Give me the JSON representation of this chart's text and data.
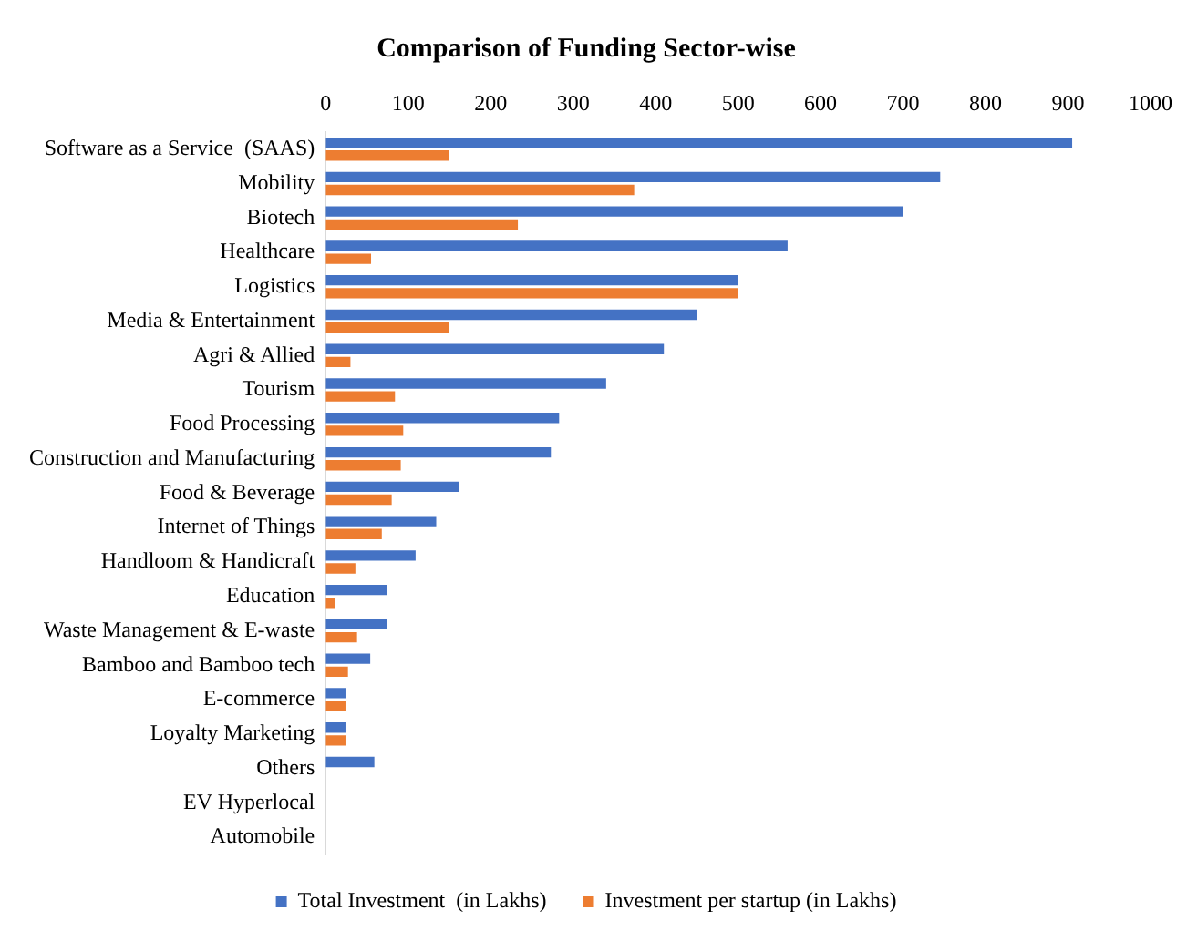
{
  "chart_data": {
    "type": "bar",
    "orientation": "horizontal",
    "title": "Comparison of Funding Sector-wise",
    "categories": [
      "Software as a Service  (SAAS)",
      "Mobility",
      "Biotech",
      "Healthcare",
      "Logistics",
      "Media & Entertainment",
      "Agri & Allied",
      "Tourism",
      "Food Processing",
      "Construction and Manufacturing",
      "Food & Beverage",
      "Internet of Things",
      "Handloom & Handicraft",
      "Education",
      "Waste Management & E-waste",
      "Bamboo and Bamboo tech",
      "E-commerce",
      "Loyalty Marketing",
      "Others",
      "EV Hyperlocal",
      "Automobile"
    ],
    "series": [
      {
        "name": "Total Investment  (in Lakhs)",
        "color": "#4472c4",
        "values": [
          905,
          745,
          700,
          560,
          500,
          450,
          410,
          340,
          283,
          273,
          162,
          134,
          109,
          74,
          74,
          54,
          24,
          24,
          59,
          0,
          0
        ]
      },
      {
        "name": "Investment per startup (in Lakhs)",
        "color": "#ed7d31",
        "values": [
          150,
          374,
          233,
          55,
          500,
          150,
          30,
          84,
          94,
          91,
          80,
          68,
          36,
          11,
          38,
          27,
          24,
          24,
          0,
          0,
          0
        ]
      }
    ],
    "xlim": [
      0,
      1000
    ],
    "xticks": [
      0,
      100,
      200,
      300,
      400,
      500,
      600,
      700,
      800,
      900,
      1000
    ],
    "grid": false,
    "legend": "bottom"
  }
}
